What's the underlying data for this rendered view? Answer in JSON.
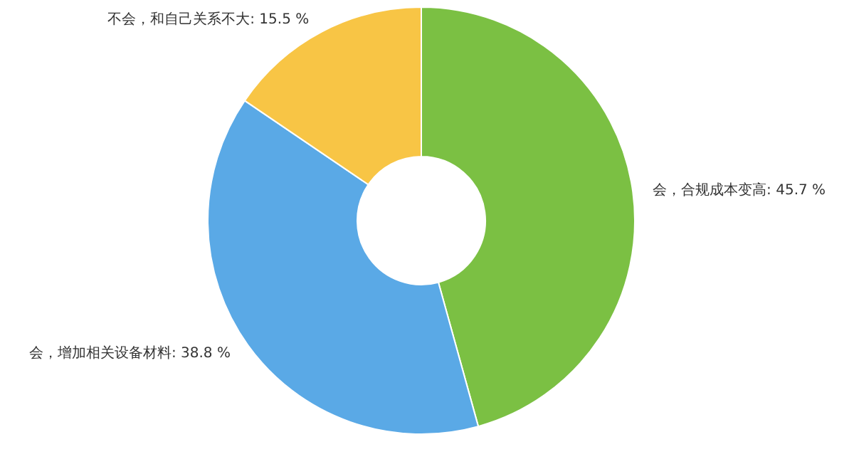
{
  "chart_data": {
    "type": "donut",
    "categories": [
      "会，合规成本变高",
      "会，增加相关设备材料",
      "不会，和自己关系不大"
    ],
    "values": [
      45.7,
      38.8,
      15.5
    ],
    "value_labels": [
      "45.7 %",
      "38.8 %",
      "15.5 %"
    ],
    "colors": [
      "#7bc043",
      "#5aa9e6",
      "#f8c545"
    ]
  }
}
